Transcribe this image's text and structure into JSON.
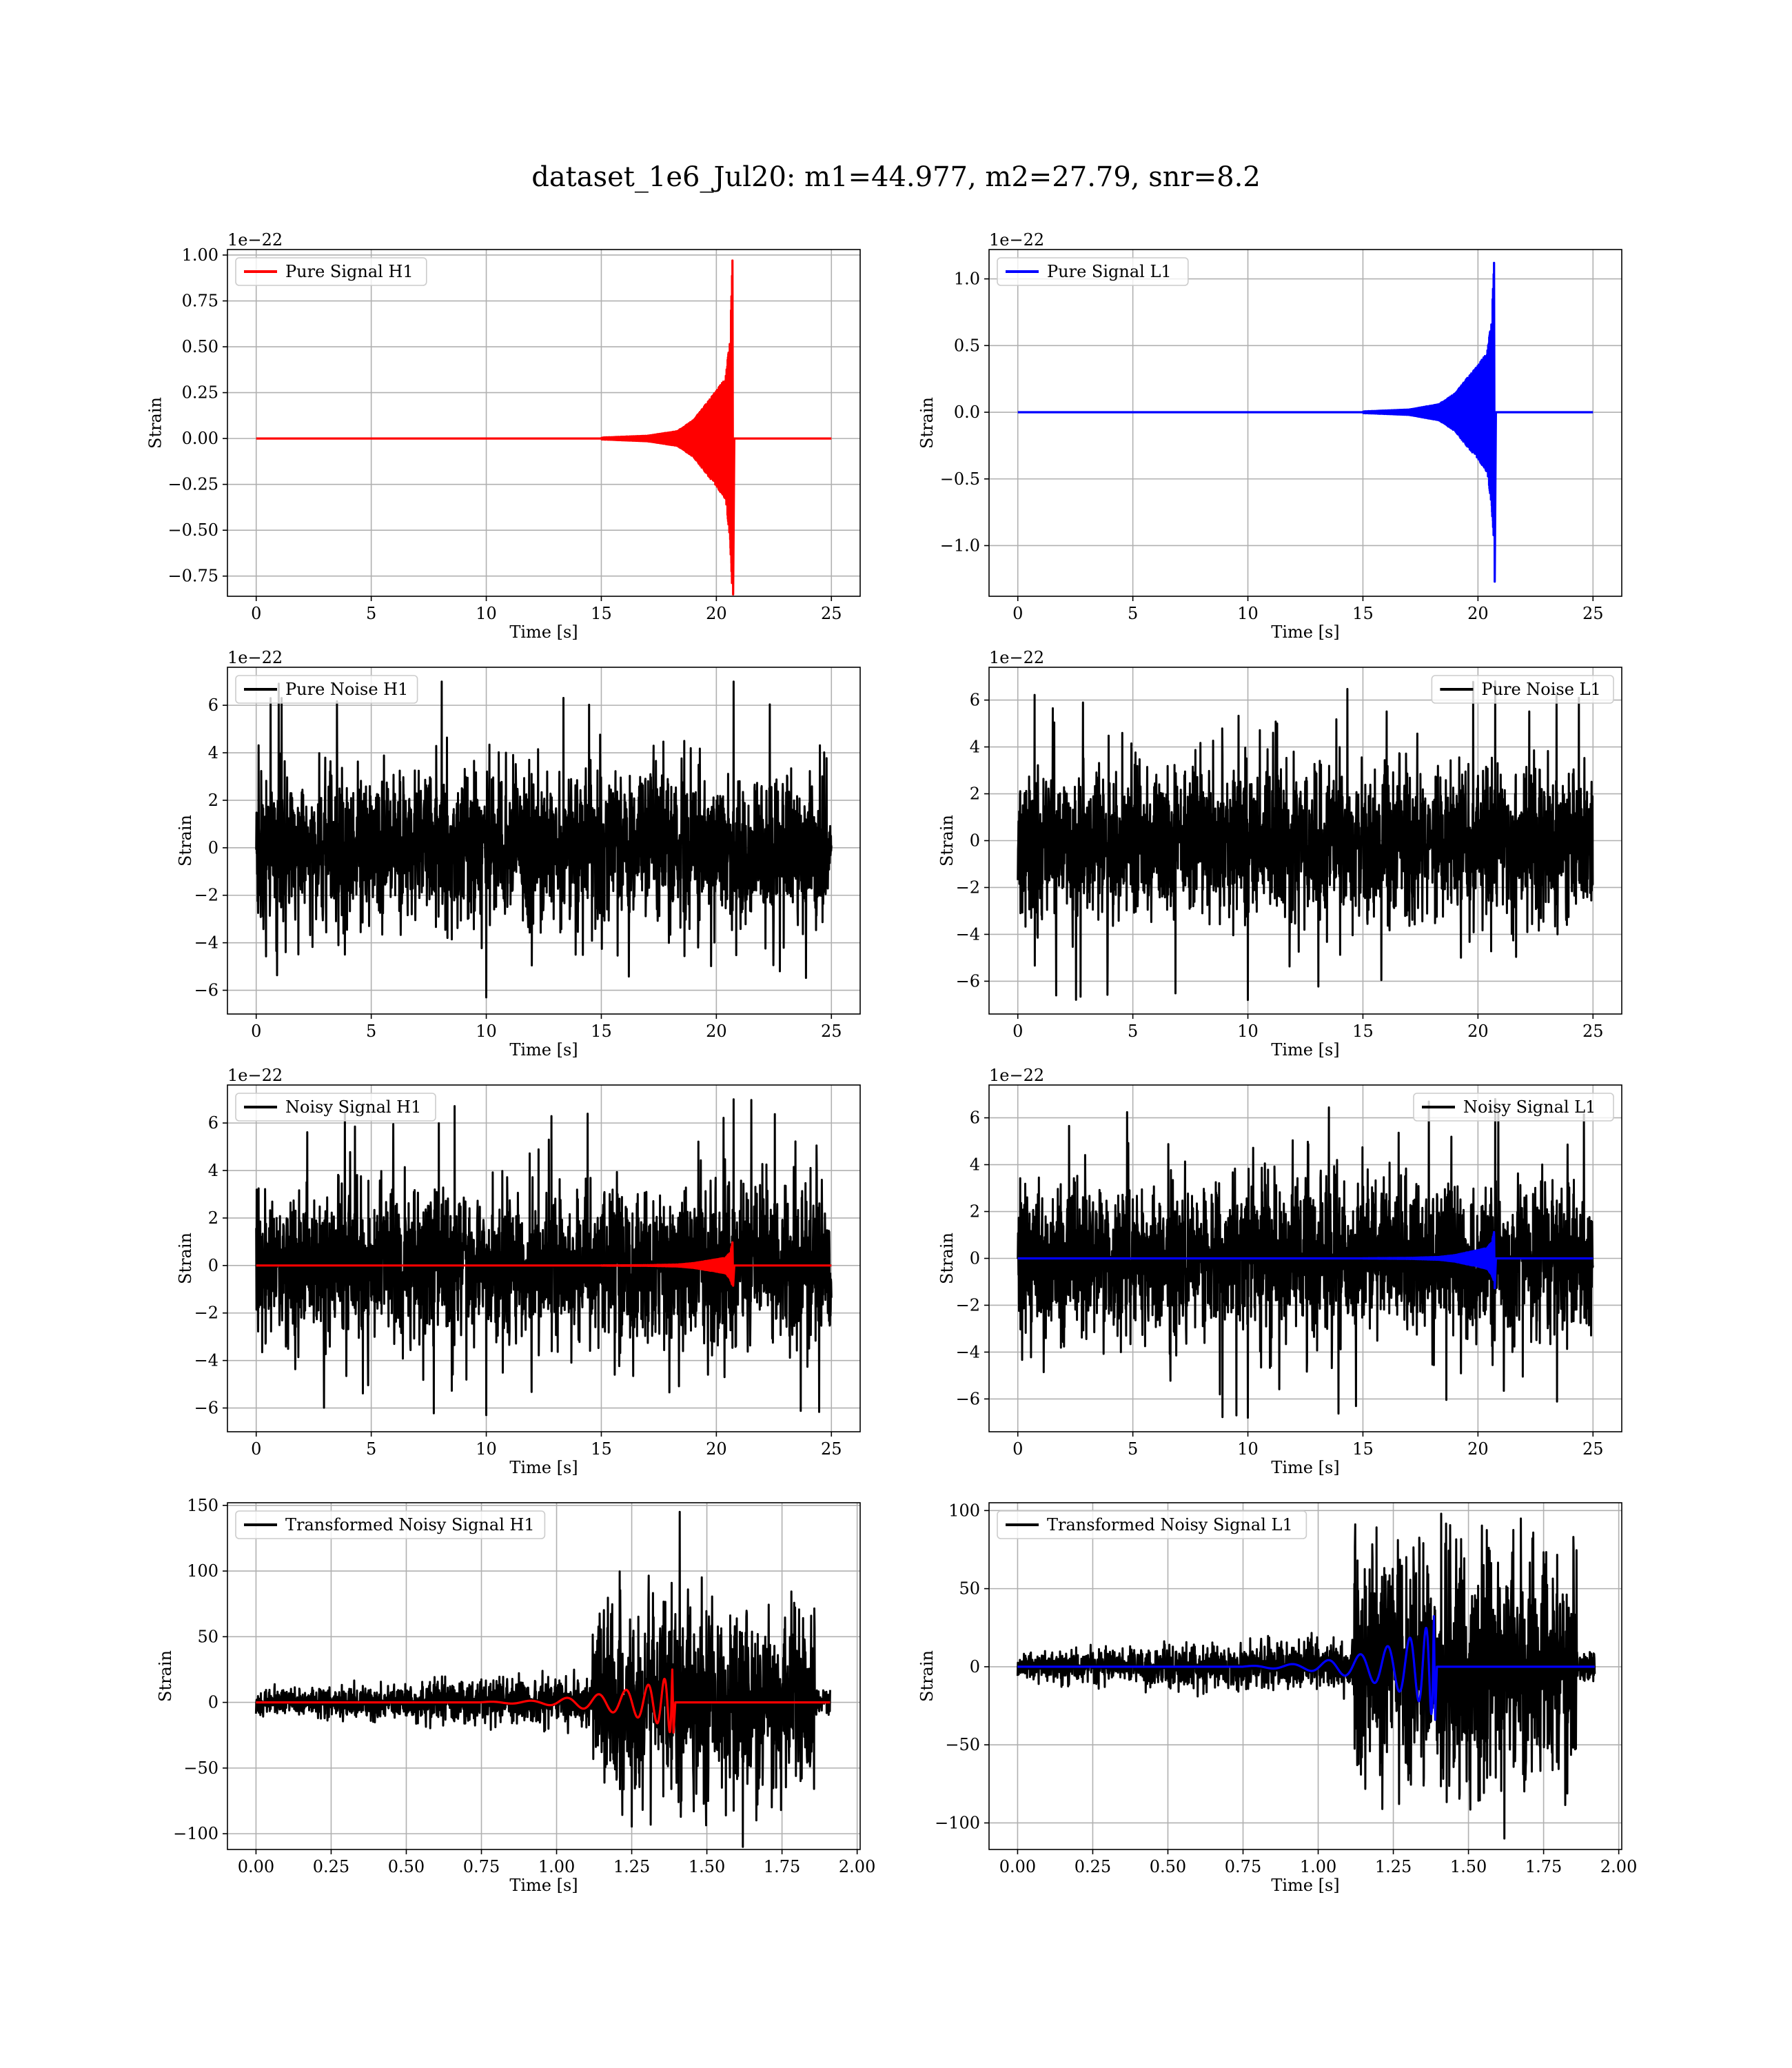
{
  "figure": {
    "suptitle": "dataset_1e6_Jul20: m1=44.977, m2=27.79, snr=8.2"
  },
  "chart_data": [
    {
      "id": "pure-signal-h1",
      "type": "line",
      "xlabel": "Time [s]",
      "ylabel": "Strain",
      "offset_text": "1e−22",
      "xlim": [
        -1.25,
        26.25
      ],
      "ylim": [
        -0.86,
        1.03
      ],
      "xticks": [
        0,
        5,
        10,
        15,
        20,
        25
      ],
      "xtick_labels": [
        "0",
        "5",
        "10",
        "15",
        "20",
        "25"
      ],
      "yticks": [
        -0.75,
        -0.5,
        -0.25,
        0.0,
        0.25,
        0.5,
        0.75,
        1.0
      ],
      "ytick_labels": [
        "−0.75",
        "−0.50",
        "−0.25",
        "0.00",
        "0.25",
        "0.50",
        "0.75",
        "1.00"
      ],
      "grid": true,
      "legend_position": "upper-left",
      "series": [
        {
          "name": "Pure Signal H1",
          "color": "#ff0000",
          "kind": "chirp",
          "x_start": 0,
          "x_end": 25,
          "merger_time": 20.7,
          "peak_max": 0.97,
          "peak_min": -0.85,
          "envelope": [
            [
              15.0,
              0.005
            ],
            [
              17.0,
              0.015
            ],
            [
              18.3,
              0.04
            ],
            [
              19.0,
              0.1
            ],
            [
              19.5,
              0.18
            ],
            [
              20.0,
              0.26
            ],
            [
              20.4,
              0.33
            ],
            [
              20.6,
              0.55
            ],
            [
              20.7,
              0.97
            ]
          ]
        }
      ]
    },
    {
      "id": "pure-signal-l1",
      "type": "line",
      "xlabel": "Time [s]",
      "ylabel": "Strain",
      "offset_text": "1e−22",
      "xlim": [
        -1.25,
        26.25
      ],
      "ylim": [
        -1.38,
        1.22
      ],
      "xticks": [
        0,
        5,
        10,
        15,
        20,
        25
      ],
      "xtick_labels": [
        "0",
        "5",
        "10",
        "15",
        "20",
        "25"
      ],
      "yticks": [
        -1.0,
        -0.5,
        0.0,
        0.5,
        1.0
      ],
      "ytick_labels": [
        "−1.0",
        "−0.5",
        "0.0",
        "0.5",
        "1.0"
      ],
      "grid": true,
      "legend_position": "upper-left",
      "series": [
        {
          "name": "Pure Signal L1",
          "color": "#0000ff",
          "kind": "chirp",
          "x_start": 0,
          "x_end": 25,
          "merger_time": 20.7,
          "peak_max": 1.12,
          "peak_min": -1.27,
          "envelope": [
            [
              15.0,
              0.006
            ],
            [
              17.0,
              0.02
            ],
            [
              18.3,
              0.06
            ],
            [
              19.0,
              0.14
            ],
            [
              19.5,
              0.25
            ],
            [
              20.0,
              0.35
            ],
            [
              20.4,
              0.45
            ],
            [
              20.6,
              0.7
            ],
            [
              20.7,
              1.12
            ]
          ]
        }
      ]
    },
    {
      "id": "pure-noise-h1",
      "type": "line",
      "xlabel": "Time [s]",
      "ylabel": "Strain",
      "offset_text": "1e−22",
      "xlim": [
        -1.25,
        26.25
      ],
      "ylim": [
        -7.0,
        7.6
      ],
      "xticks": [
        0,
        5,
        10,
        15,
        20,
        25
      ],
      "xtick_labels": [
        "0",
        "5",
        "10",
        "15",
        "20",
        "25"
      ],
      "yticks": [
        -6,
        -4,
        -2,
        0,
        2,
        4,
        6
      ],
      "ytick_labels": [
        "−6",
        "−4",
        "−2",
        "0",
        "2",
        "4",
        "6"
      ],
      "grid": true,
      "legend_position": "upper-left",
      "series": [
        {
          "name": "Pure Noise H1",
          "color": "#000000",
          "kind": "noise",
          "x_start": 0,
          "x_end": 25,
          "typical_max": 4.6,
          "typical_min": -4.2,
          "peak_max": 7.0,
          "peak_min": -6.3
        }
      ]
    },
    {
      "id": "pure-noise-l1",
      "type": "line",
      "xlabel": "Time [s]",
      "ylabel": "Strain",
      "offset_text": "1e−22",
      "xlim": [
        -1.25,
        26.25
      ],
      "ylim": [
        -7.4,
        7.4
      ],
      "xticks": [
        0,
        5,
        10,
        15,
        20,
        25
      ],
      "xtick_labels": [
        "0",
        "5",
        "10",
        "15",
        "20",
        "25"
      ],
      "yticks": [
        -6,
        -4,
        -2,
        0,
        2,
        4,
        6
      ],
      "ytick_labels": [
        "−6",
        "−4",
        "−2",
        "0",
        "2",
        "4",
        "6"
      ],
      "grid": true,
      "legend_position": "upper-right",
      "series": [
        {
          "name": "Pure Noise L1",
          "color": "#000000",
          "kind": "noise",
          "x_start": 0,
          "x_end": 25,
          "typical_max": 4.5,
          "typical_min": -4.2,
          "peak_max": 6.8,
          "peak_min": -6.8
        }
      ]
    },
    {
      "id": "noisy-signal-h1",
      "type": "line",
      "xlabel": "Time [s]",
      "ylabel": "Strain",
      "offset_text": "1e−22",
      "xlim": [
        -1.25,
        26.25
      ],
      "ylim": [
        -7.0,
        7.6
      ],
      "xticks": [
        0,
        5,
        10,
        15,
        20,
        25
      ],
      "xtick_labels": [
        "0",
        "5",
        "10",
        "15",
        "20",
        "25"
      ],
      "yticks": [
        -6,
        -4,
        -2,
        0,
        2,
        4,
        6
      ],
      "ytick_labels": [
        "−6",
        "−4",
        "−2",
        "0",
        "2",
        "4",
        "6"
      ],
      "grid": true,
      "legend_position": "upper-left",
      "series": [
        {
          "name": "Noisy Signal H1",
          "color": "#000000",
          "kind": "noise",
          "x_start": 0,
          "x_end": 25,
          "typical_max": 4.6,
          "typical_min": -4.2,
          "peak_max": 7.0,
          "peak_min": -6.3
        },
        {
          "name": "",
          "color": "#ff0000",
          "kind": "chirp",
          "x_start": 0,
          "x_end": 25,
          "merger_time": 20.7,
          "peak_max": 0.97,
          "peak_min": -0.85,
          "envelope": [
            [
              15.0,
              0.005
            ],
            [
              17.0,
              0.015
            ],
            [
              18.3,
              0.04
            ],
            [
              19.0,
              0.1
            ],
            [
              19.5,
              0.18
            ],
            [
              20.0,
              0.26
            ],
            [
              20.4,
              0.33
            ],
            [
              20.6,
              0.55
            ],
            [
              20.7,
              0.97
            ]
          ]
        }
      ]
    },
    {
      "id": "noisy-signal-l1",
      "type": "line",
      "xlabel": "Time [s]",
      "ylabel": "Strain",
      "offset_text": "1e−22",
      "xlim": [
        -1.25,
        26.25
      ],
      "ylim": [
        -7.4,
        7.4
      ],
      "xticks": [
        0,
        5,
        10,
        15,
        20,
        25
      ],
      "xtick_labels": [
        "0",
        "5",
        "10",
        "15",
        "20",
        "25"
      ],
      "yticks": [
        -6,
        -4,
        -2,
        0,
        2,
        4,
        6
      ],
      "ytick_labels": [
        "−6",
        "−4",
        "−2",
        "0",
        "2",
        "4",
        "6"
      ],
      "grid": true,
      "legend_position": "upper-right",
      "series": [
        {
          "name": "Noisy Signal L1",
          "color": "#000000",
          "kind": "noise",
          "x_start": 0,
          "x_end": 25,
          "typical_max": 4.5,
          "typical_min": -4.2,
          "peak_max": 6.8,
          "peak_min": -6.8
        },
        {
          "name": "",
          "color": "#0000ff",
          "kind": "chirp",
          "x_start": 0,
          "x_end": 25,
          "merger_time": 20.7,
          "peak_max": 1.12,
          "peak_min": -1.27,
          "envelope": [
            [
              15.0,
              0.006
            ],
            [
              17.0,
              0.02
            ],
            [
              18.3,
              0.06
            ],
            [
              19.0,
              0.14
            ],
            [
              19.5,
              0.25
            ],
            [
              20.0,
              0.35
            ],
            [
              20.4,
              0.45
            ],
            [
              20.6,
              0.7
            ],
            [
              20.7,
              1.12
            ]
          ]
        }
      ]
    },
    {
      "id": "transformed-noisy-signal-h1",
      "type": "line",
      "xlabel": "Time [s]",
      "ylabel": "Strain",
      "offset_text": "",
      "xlim": [
        -0.095,
        2.01
      ],
      "ylim": [
        -112,
        152
      ],
      "xticks": [
        0.0,
        0.25,
        0.5,
        0.75,
        1.0,
        1.25,
        1.5,
        1.75,
        2.0
      ],
      "xtick_labels": [
        "0.00",
        "0.25",
        "0.50",
        "0.75",
        "1.00",
        "1.25",
        "1.50",
        "1.75",
        "2.00"
      ],
      "yticks": [
        -100,
        -50,
        0,
        50,
        100,
        150
      ],
      "ytick_labels": [
        "−100",
        "−50",
        "0",
        "50",
        "100",
        "150"
      ],
      "grid": true,
      "legend_position": "upper-left",
      "series": [
        {
          "name": "Transformed Noisy Signal H1",
          "color": "#000000",
          "kind": "transformed-noise",
          "x_start": 0,
          "x_end": 1.91,
          "segments": [
            [
              0.0,
              1.12,
              8,
              22
            ],
            [
              1.12,
              1.86,
              35,
              100
            ],
            [
              1.86,
              1.91,
              6,
              10
            ]
          ],
          "peak_max": 145,
          "peak_min": -110
        },
        {
          "name": "",
          "color": "#ff0000",
          "kind": "chirp",
          "x_start": 0,
          "x_end": 1.91,
          "merger_time": 1.385,
          "peak_max": 25,
          "peak_min": -23,
          "envelope": [
            [
              0.75,
              0.3
            ],
            [
              0.95,
              1.5
            ],
            [
              1.1,
              5
            ],
            [
              1.2,
              8
            ],
            [
              1.3,
              13
            ],
            [
              1.36,
              18
            ],
            [
              1.385,
              25
            ]
          ]
        }
      ]
    },
    {
      "id": "transformed-noisy-signal-l1",
      "type": "line",
      "xlabel": "Time [s]",
      "ylabel": "Strain",
      "offset_text": "",
      "xlim": [
        -0.095,
        2.01
      ],
      "ylim": [
        -117,
        105
      ],
      "xticks": [
        0.0,
        0.25,
        0.5,
        0.75,
        1.0,
        1.25,
        1.5,
        1.75,
        2.0
      ],
      "xtick_labels": [
        "0.00",
        "0.25",
        "0.50",
        "0.75",
        "1.00",
        "1.25",
        "1.50",
        "1.75",
        "2.00"
      ],
      "yticks": [
        -100,
        -50,
        0,
        50,
        100
      ],
      "ytick_labels": [
        "−100",
        "−50",
        "0",
        "50",
        "100"
      ],
      "grid": true,
      "legend_position": "upper-left",
      "series": [
        {
          "name": "Transformed Noisy Signal L1",
          "color": "#000000",
          "kind": "transformed-noise",
          "x_start": 0,
          "x_end": 1.92,
          "segments": [
            [
              0.0,
              1.12,
              7,
              22
            ],
            [
              1.12,
              1.86,
              40,
              95
            ],
            [
              1.86,
              1.92,
              6,
              10
            ]
          ],
          "peak_max": 98,
          "peak_min": -110
        },
        {
          "name": "",
          "color": "#0000ff",
          "kind": "chirp",
          "x_start": 0,
          "x_end": 1.92,
          "merger_time": 1.385,
          "peak_max": 32,
          "peak_min": -34,
          "envelope": [
            [
              0.75,
              0.3
            ],
            [
              0.95,
              2
            ],
            [
              1.1,
              6
            ],
            [
              1.2,
              11
            ],
            [
              1.3,
              18
            ],
            [
              1.36,
              25
            ],
            [
              1.385,
              33
            ]
          ]
        }
      ]
    }
  ]
}
